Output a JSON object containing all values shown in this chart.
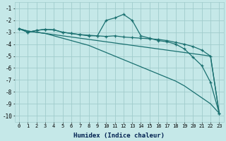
{
  "xlabel": "Humidex (Indice chaleur)",
  "bg_color": "#c5e8e8",
  "grid_color": "#a0cccc",
  "line_color": "#1a7070",
  "xlim": [
    -0.5,
    23.5
  ],
  "ylim": [
    -10.5,
    -0.5
  ],
  "yticks": [
    -1,
    -2,
    -3,
    -4,
    -5,
    -6,
    -7,
    -8,
    -9,
    -10
  ],
  "xticks": [
    0,
    1,
    2,
    3,
    4,
    5,
    6,
    7,
    8,
    9,
    10,
    11,
    12,
    13,
    14,
    15,
    16,
    17,
    18,
    19,
    20,
    21,
    22,
    23
  ],
  "series": [
    {
      "x": [
        0,
        1,
        2,
        3,
        4,
        5,
        6,
        7,
        8,
        9,
        10,
        11,
        12,
        13,
        14,
        15,
        16,
        17,
        18,
        19,
        20,
        21,
        22,
        23
      ],
      "y": [
        -2.7,
        -2.9,
        -3.0,
        -3.1,
        -3.2,
        -3.3,
        -3.4,
        -3.5,
        -3.6,
        -3.7,
        -3.8,
        -3.9,
        -4.0,
        -4.1,
        -4.2,
        -4.3,
        -4.4,
        -4.5,
        -4.6,
        -4.7,
        -4.8,
        -4.9,
        -5.0,
        -9.8
      ],
      "marker": false,
      "lw": 0.9
    },
    {
      "x": [
        0,
        1,
        2,
        3,
        4,
        5,
        6,
        7,
        8,
        9,
        10,
        11,
        12,
        13,
        14,
        15,
        16,
        17,
        18,
        19,
        20,
        21,
        22,
        23
      ],
      "y": [
        -2.7,
        -3.0,
        -2.85,
        -2.75,
        -2.8,
        -3.0,
        -3.1,
        -3.2,
        -3.25,
        -3.3,
        -3.35,
        -3.3,
        -3.4,
        -3.45,
        -3.5,
        -3.55,
        -3.6,
        -3.7,
        -3.85,
        -4.0,
        -4.2,
        -4.5,
        -5.0,
        -9.8
      ],
      "marker": true,
      "lw": 0.9
    },
    {
      "x": [
        0,
        1,
        2,
        3,
        4,
        5,
        6,
        7,
        8,
        9,
        10,
        11,
        12,
        13,
        14,
        15,
        16,
        17,
        18,
        19,
        20,
        21,
        22,
        23
      ],
      "y": [
        -2.7,
        -3.0,
        -2.85,
        -2.75,
        -2.8,
        -3.0,
        -3.1,
        -3.2,
        -3.3,
        -3.3,
        -2.0,
        -1.8,
        -1.5,
        -2.0,
        -3.3,
        -3.5,
        -3.7,
        -3.8,
        -4.0,
        -4.4,
        -5.1,
        -5.8,
        -7.2,
        -9.8
      ],
      "marker": true,
      "lw": 0.9
    },
    {
      "x": [
        0,
        1,
        2,
        3,
        4,
        5,
        6,
        7,
        8,
        9,
        10,
        11,
        12,
        13,
        14,
        15,
        16,
        17,
        18,
        19,
        20,
        21,
        22,
        23
      ],
      "y": [
        -2.7,
        -2.9,
        -3.0,
        -3.1,
        -3.3,
        -3.5,
        -3.7,
        -3.9,
        -4.1,
        -4.4,
        -4.7,
        -5.0,
        -5.3,
        -5.6,
        -5.9,
        -6.2,
        -6.5,
        -6.8,
        -7.1,
        -7.5,
        -8.0,
        -8.5,
        -9.0,
        -9.8
      ],
      "marker": false,
      "lw": 0.9
    }
  ]
}
